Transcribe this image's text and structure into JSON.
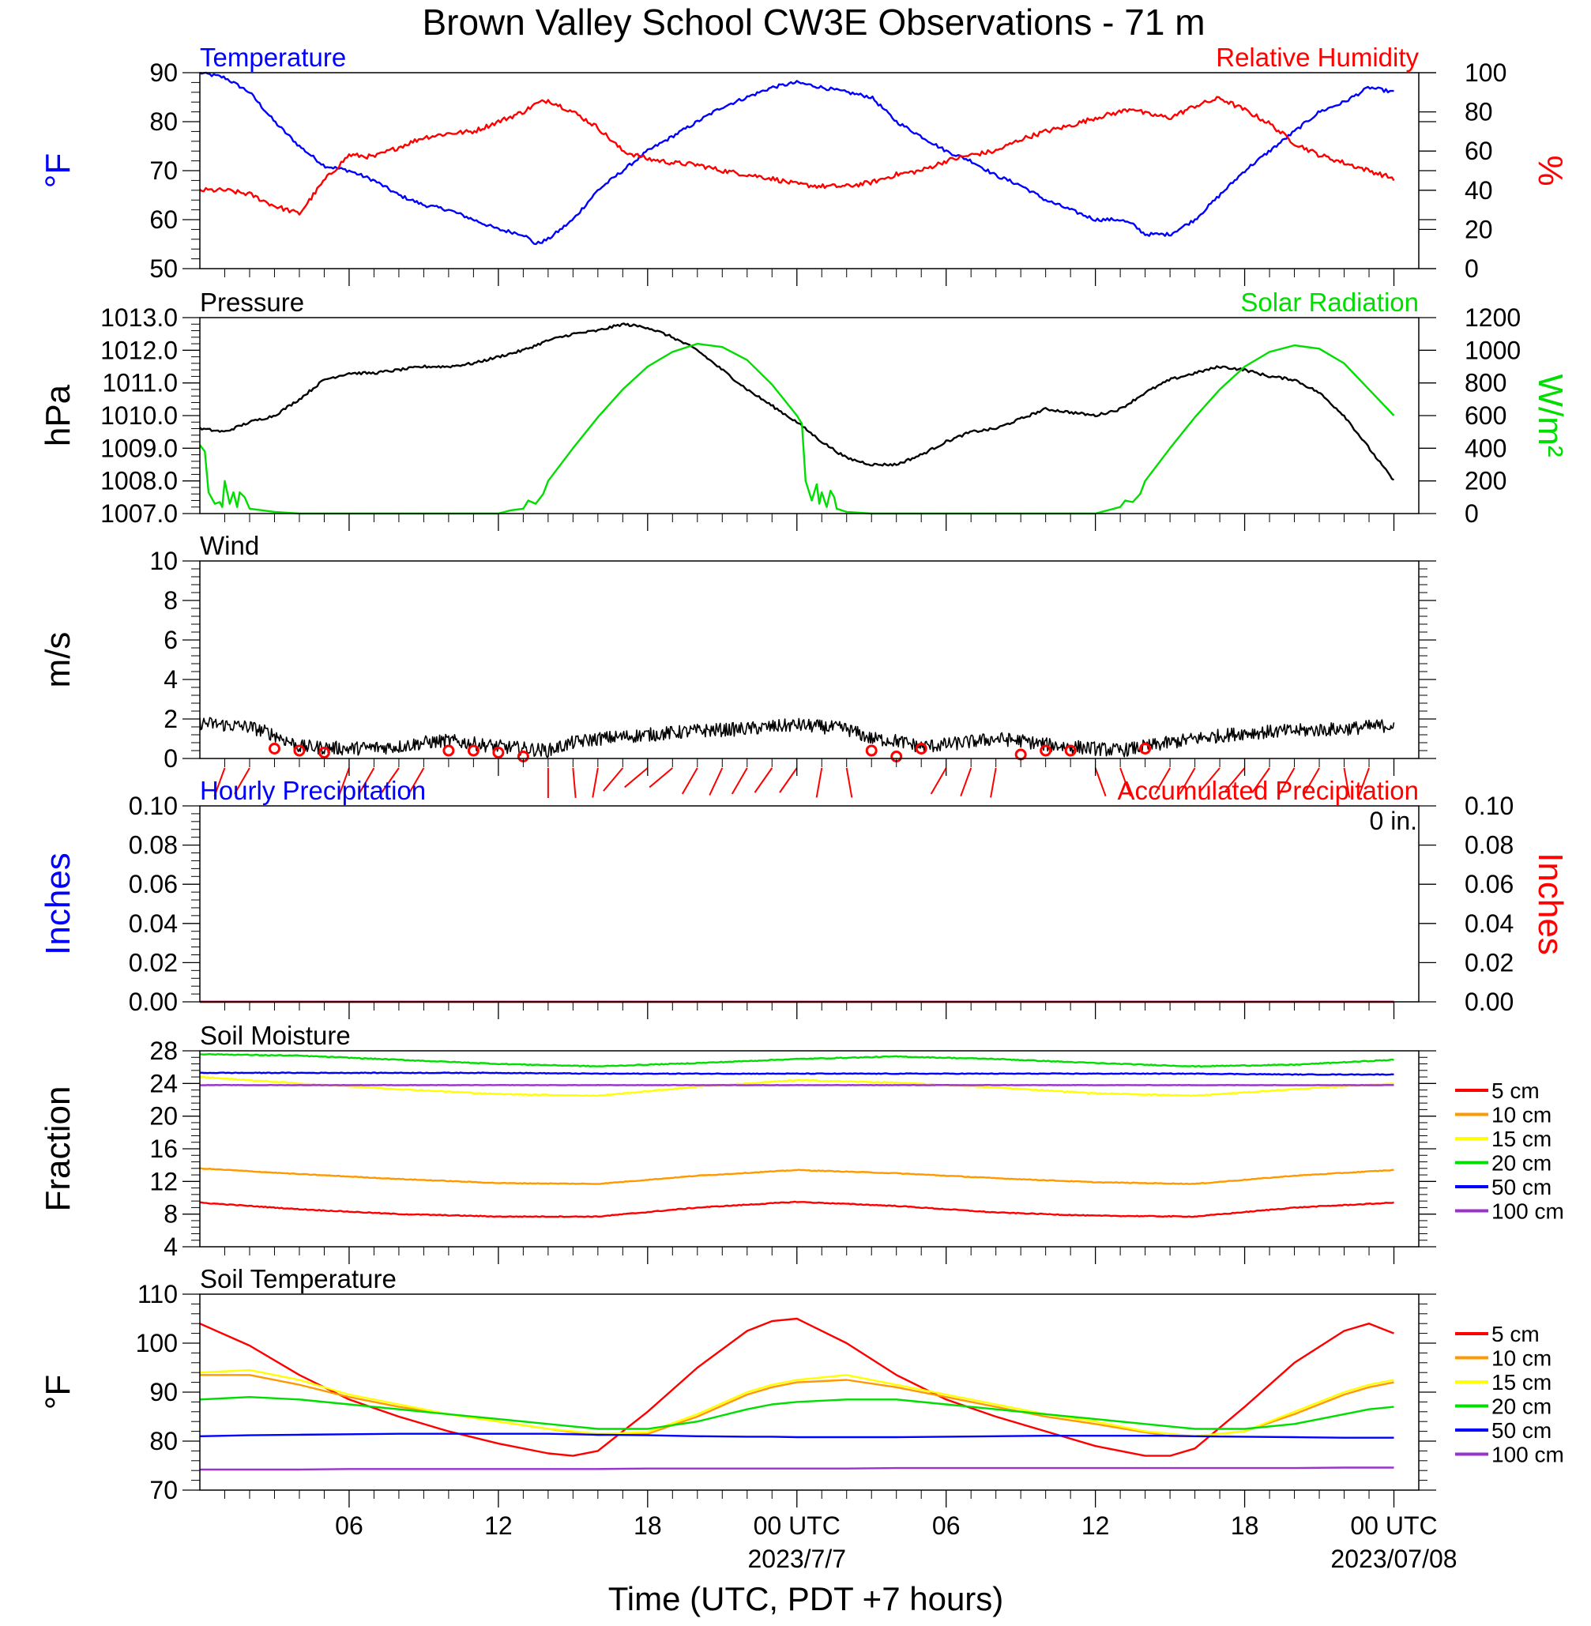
{
  "title": "Brown Valley School CW3E Observations - 71 m",
  "xlabel": "Time (UTC, PDT +7 hours)",
  "x_ticks": [
    "06",
    "12",
    "18",
    "00 UTC",
    "06",
    "12",
    "18",
    "00 UTC"
  ],
  "x_dates": [
    "2023/7/7",
    "2023/07/08"
  ],
  "colors": {
    "blue": "#0000ff",
    "red": "#ff0000",
    "green": "#00dd00",
    "black": "#000000",
    "orange": "#ff9900",
    "yellow": "#ffff00",
    "purple": "#9933cc"
  },
  "chart_data": [
    {
      "id": "temp_rh",
      "type": "line",
      "title_left": "Temperature",
      "title_right": "Relative Humidity",
      "ylabel_left": "°F",
      "ylabel_right": "%",
      "ylim_left": [
        50,
        90
      ],
      "ylim_right": [
        0,
        100
      ],
      "yticks_left": [
        "50",
        "60",
        "70",
        "80",
        "90"
      ],
      "yticks_right": [
        "0",
        "20",
        "40",
        "60",
        "80",
        "100"
      ],
      "x_hours": [
        0,
        1,
        2,
        3,
        4,
        5,
        6,
        7,
        8,
        9,
        10,
        11,
        12,
        13,
        13.5,
        14,
        15,
        16,
        17,
        18,
        19,
        20,
        21,
        22,
        23,
        24,
        25,
        26,
        27,
        28,
        29,
        30,
        31,
        32,
        33,
        34,
        35,
        36,
        37,
        37.5,
        38,
        39,
        40,
        41,
        42,
        43,
        44,
        45,
        46,
        47,
        48
      ],
      "series": [
        {
          "name": "Temperature",
          "axis": "left",
          "color": "#0000ff",
          "values": [
            90,
            89,
            86,
            80,
            75,
            71,
            70,
            68,
            65,
            63,
            62,
            60,
            58,
            57,
            55,
            56,
            60,
            66,
            70,
            74,
            77,
            80,
            83,
            85,
            87,
            88,
            87,
            86,
            85,
            80,
            77,
            74,
            72,
            69,
            67,
            64,
            62,
            60,
            60,
            59,
            57,
            57,
            60,
            65,
            70,
            74,
            78,
            82,
            84,
            87,
            86
          ]
        },
        {
          "name": "Relative Humidity",
          "axis": "right",
          "color": "#ff0000",
          "values": [
            40,
            40,
            38,
            32,
            28,
            45,
            58,
            57,
            62,
            67,
            69,
            70,
            75,
            80,
            84,
            86,
            80,
            72,
            60,
            56,
            54,
            53,
            50,
            48,
            46,
            43,
            42,
            42,
            44,
            48,
            50,
            55,
            58,
            60,
            66,
            70,
            73,
            77,
            80,
            82,
            79,
            77,
            83,
            87,
            81,
            74,
            64,
            58,
            54,
            50,
            46
          ]
        }
      ]
    },
    {
      "id": "pressure_solar",
      "type": "line",
      "title_left": "Pressure",
      "title_right": "Solar Radiation",
      "ylabel_left": "hPa",
      "ylabel_right": "W/m²",
      "ylim_left": [
        1007,
        1013
      ],
      "ylim_right": [
        0,
        1200
      ],
      "yticks_left": [
        "1007.0",
        "1008.0",
        "1009.0",
        "1010.0",
        "1011.0",
        "1012.0",
        "1013.0"
      ],
      "yticks_right": [
        "0",
        "200",
        "400",
        "600",
        "800",
        "1000",
        "1200"
      ],
      "series": [
        {
          "name": "Pressure",
          "axis": "left",
          "color": "#000000",
          "x_hours": [
            0,
            1,
            2,
            3,
            4,
            5,
            6,
            7,
            8,
            9,
            10,
            11,
            12,
            13,
            14,
            15,
            16,
            17,
            18,
            19,
            20,
            21,
            22,
            23,
            24,
            25,
            26,
            27,
            28,
            29,
            30,
            31,
            32,
            33,
            34,
            35,
            36,
            37,
            38,
            39,
            40,
            41,
            42,
            43,
            44,
            45,
            46,
            47,
            48
          ],
          "values": [
            1009.6,
            1009.5,
            1009.8,
            1010.0,
            1010.5,
            1011.1,
            1011.3,
            1011.3,
            1011.4,
            1011.5,
            1011.5,
            1011.6,
            1011.8,
            1012.0,
            1012.3,
            1012.5,
            1012.6,
            1012.8,
            1012.7,
            1012.4,
            1012.0,
            1011.4,
            1010.8,
            1010.3,
            1009.8,
            1009.2,
            1008.7,
            1008.5,
            1008.5,
            1008.8,
            1009.2,
            1009.5,
            1009.6,
            1009.9,
            1010.2,
            1010.1,
            1010.0,
            1010.2,
            1010.7,
            1011.1,
            1011.3,
            1011.5,
            1011.4,
            1011.2,
            1011.1,
            1010.7,
            1010.0,
            1009.0,
            1008.0
          ]
        },
        {
          "name": "Solar Radiation",
          "axis": "right",
          "color": "#00dd00",
          "x_hours": [
            0,
            0.2,
            0.35,
            0.6,
            0.8,
            0.9,
            1.0,
            1.2,
            1.35,
            1.5,
            1.6,
            1.8,
            2.0,
            3.0,
            4,
            6,
            8,
            10,
            12,
            12.5,
            13,
            13.2,
            13.5,
            13.8,
            14,
            15,
            16,
            17,
            18,
            19,
            20,
            21,
            22,
            23,
            24,
            24.2,
            24.35,
            24.6,
            24.8,
            24.9,
            25.0,
            25.2,
            25.35,
            25.5,
            25.6,
            25.8,
            26.0,
            27.0,
            28,
            30,
            32,
            34,
            36,
            36.5,
            37,
            37.2,
            37.5,
            37.8,
            38,
            39,
            40,
            41,
            42,
            43,
            44,
            45,
            46,
            47,
            48
          ],
          "values": [
            420,
            380,
            130,
            60,
            70,
            40,
            200,
            60,
            130,
            40,
            130,
            100,
            30,
            10,
            0,
            0,
            0,
            0,
            0,
            20,
            30,
            80,
            60,
            120,
            200,
            400,
            590,
            760,
            900,
            990,
            1040,
            1020,
            940,
            790,
            600,
            550,
            200,
            80,
            180,
            60,
            130,
            40,
            140,
            100,
            30,
            20,
            10,
            0,
            0,
            0,
            0,
            0,
            0,
            20,
            40,
            80,
            70,
            120,
            200,
            400,
            590,
            760,
            900,
            990,
            1030,
            1010,
            920,
            760,
            600
          ]
        }
      ]
    },
    {
      "id": "wind",
      "type": "line",
      "title_left": "Wind",
      "ylabel_left": "m/s",
      "ylim_left": [
        0,
        10
      ],
      "yticks_left": [
        "0",
        "2",
        "4",
        "6",
        "8",
        "10"
      ],
      "series": [
        {
          "name": "Wind",
          "axis": "left",
          "color": "#000000",
          "x_hours": [
            0,
            2,
            3,
            4,
            6,
            8,
            9,
            10,
            12,
            14,
            15,
            16,
            18,
            20,
            22,
            24,
            26,
            27,
            28,
            29,
            30,
            32,
            33,
            34,
            36,
            37,
            38,
            40,
            42,
            44,
            46,
            48
          ],
          "values": [
            1.8,
            1.6,
            1.2,
            0.6,
            0.5,
            0.6,
            0.8,
            0.9,
            0.6,
            0.4,
            0.8,
            1.0,
            1.2,
            1.4,
            1.5,
            1.7,
            1.5,
            1.0,
            0.9,
            0.6,
            0.7,
            1.0,
            0.9,
            0.7,
            0.5,
            0.4,
            0.6,
            1.0,
            1.3,
            1.4,
            1.5,
            1.7
          ]
        }
      ],
      "calm_hours": [
        3,
        4,
        5,
        10,
        11,
        12,
        13,
        27,
        28,
        29,
        33,
        34,
        35,
        38
      ],
      "calm_values": [
        0.5,
        0.4,
        0.3,
        0.4,
        0.4,
        0.3,
        0.1,
        0.4,
        0.1,
        0.5,
        0.2,
        0.4,
        0.4,
        0.5
      ],
      "barb_hours": [
        1,
        2,
        6,
        7,
        8,
        9,
        14,
        15,
        16,
        17,
        18,
        19,
        20,
        21,
        22,
        23,
        24,
        25,
        26,
        30,
        31,
        32,
        36,
        37,
        39,
        40,
        41,
        42,
        43,
        44,
        45,
        46,
        47
      ],
      "barb_dir_deg": [
        200,
        210,
        200,
        210,
        215,
        210,
        180,
        175,
        190,
        220,
        230,
        230,
        210,
        205,
        210,
        215,
        215,
        190,
        170,
        210,
        200,
        190,
        160,
        160,
        210,
        210,
        220,
        220,
        215,
        210,
        210,
        170,
        200
      ]
    },
    {
      "id": "precip",
      "type": "line",
      "title_left": "Hourly Precipitation",
      "title_right": "Accumulated Precipitation",
      "annotation": "0 in.",
      "ylabel_left": "Inches",
      "ylabel_right": "Inches",
      "ylim_left": [
        0,
        0.1
      ],
      "ylim_right": [
        0,
        0.1
      ],
      "yticks_left": [
        "0.00",
        "0.02",
        "0.04",
        "0.06",
        "0.08",
        "0.10"
      ],
      "yticks_right": [
        "0.00",
        "0.02",
        "0.04",
        "0.06",
        "0.08",
        "0.10"
      ],
      "series": [
        {
          "name": "Hourly Precipitation",
          "axis": "left",
          "color": "#0000ff",
          "x_hours": [
            0,
            48
          ],
          "values": [
            0,
            0
          ]
        },
        {
          "name": "Accumulated Precipitation",
          "axis": "right",
          "color": "#ff0000",
          "x_hours": [
            0,
            48
          ],
          "values": [
            0,
            0
          ]
        }
      ]
    },
    {
      "id": "soil_moisture",
      "type": "line",
      "title_left": "Soil Moisture",
      "ylabel_left": "Fraction",
      "ylim_left": [
        4,
        28
      ],
      "yticks_left": [
        "4",
        "8",
        "12",
        "16",
        "20",
        "24",
        "28"
      ],
      "x_hours": [
        0,
        4,
        8,
        12,
        16,
        20,
        24,
        28,
        32,
        36,
        40,
        44,
        48
      ],
      "series": [
        {
          "name": "5 cm",
          "color": "#ff0000",
          "values": [
            9.4,
            8.6,
            8.0,
            7.7,
            7.7,
            8.8,
            9.5,
            9.0,
            8.2,
            7.8,
            7.7,
            8.8,
            9.4
          ]
        },
        {
          "name": "10 cm",
          "color": "#ff9900",
          "values": [
            13.6,
            12.9,
            12.3,
            11.8,
            11.7,
            12.7,
            13.4,
            13.0,
            12.4,
            11.9,
            11.7,
            12.7,
            13.4
          ]
        },
        {
          "name": "15 cm",
          "color": "#ffff00",
          "values": [
            24.8,
            24.0,
            23.3,
            22.7,
            22.5,
            23.6,
            24.4,
            24.1,
            23.5,
            22.8,
            22.5,
            23.3,
            24.0
          ]
        },
        {
          "name": "20 cm",
          "color": "#00dd00",
          "values": [
            27.6,
            27.4,
            26.9,
            26.4,
            26.1,
            26.5,
            27.0,
            27.3,
            27.0,
            26.5,
            26.1,
            26.3,
            26.9
          ]
        },
        {
          "name": "50 cm",
          "color": "#0000ff",
          "values": [
            25.3,
            25.3,
            25.3,
            25.3,
            25.2,
            25.2,
            25.2,
            25.2,
            25.2,
            25.2,
            25.2,
            25.1,
            25.1
          ]
        },
        {
          "name": "100 cm",
          "color": "#9933cc",
          "values": [
            23.8,
            23.8,
            23.8,
            23.8,
            23.8,
            23.8,
            23.8,
            23.8,
            23.8,
            23.8,
            23.8,
            23.8,
            23.8
          ]
        }
      ]
    },
    {
      "id": "soil_temp",
      "type": "line",
      "title_left": "Soil Temperature",
      "ylabel_left": "°F",
      "ylim_left": [
        70,
        110
      ],
      "yticks_left": [
        "70",
        "80",
        "90",
        "100",
        "110"
      ],
      "x_hours": [
        0,
        2,
        4,
        6,
        8,
        10,
        12,
        14,
        15,
        16,
        18,
        20,
        22,
        23,
        24,
        26,
        28,
        30,
        32,
        34,
        36,
        38,
        39,
        40,
        42,
        44,
        46,
        47,
        48
      ],
      "series": [
        {
          "name": "5 cm",
          "color": "#ff0000",
          "values": [
            104.0,
            99.5,
            93.5,
            88.5,
            85.0,
            82.0,
            79.5,
            77.5,
            77.0,
            78.0,
            86.0,
            95.0,
            102.5,
            104.5,
            105.0,
            100.0,
            93.5,
            88.5,
            85.0,
            82.0,
            79.0,
            77.0,
            77.0,
            78.5,
            87.0,
            96.0,
            102.5,
            104.0,
            102.0
          ]
        },
        {
          "name": "10 cm",
          "color": "#ff9900",
          "values": [
            93.5,
            93.5,
            91.5,
            89.0,
            87.0,
            85.5,
            84.0,
            82.5,
            81.8,
            81.2,
            81.5,
            85.0,
            89.5,
            91.0,
            92.0,
            92.5,
            91.0,
            89.0,
            87.0,
            85.0,
            83.5,
            81.8,
            81.0,
            81.0,
            82.0,
            85.5,
            89.5,
            91.0,
            92.0
          ]
        },
        {
          "name": "15 cm",
          "color": "#ffff00",
          "values": [
            94.0,
            94.5,
            92.5,
            89.5,
            87.5,
            85.5,
            84.0,
            82.5,
            82.0,
            81.5,
            81.8,
            85.5,
            90.0,
            91.5,
            92.5,
            93.5,
            91.5,
            89.5,
            87.5,
            85.5,
            84.0,
            82.0,
            81.5,
            81.0,
            82.0,
            86.0,
            90.0,
            91.5,
            92.5
          ]
        },
        {
          "name": "20 cm",
          "color": "#00dd00",
          "values": [
            88.5,
            89.0,
            88.5,
            87.5,
            86.5,
            85.5,
            84.5,
            83.5,
            83.0,
            82.5,
            82.5,
            84.0,
            86.5,
            87.5,
            88.0,
            88.5,
            88.5,
            87.5,
            86.5,
            85.5,
            84.5,
            83.5,
            83.0,
            82.5,
            82.5,
            83.5,
            85.5,
            86.5,
            87.0
          ]
        },
        {
          "name": "50 cm",
          "color": "#0000ff",
          "values": [
            81.0,
            81.2,
            81.3,
            81.4,
            81.5,
            81.5,
            81.5,
            81.5,
            81.4,
            81.3,
            81.2,
            81.0,
            80.9,
            80.9,
            80.8,
            80.8,
            80.8,
            80.9,
            81.0,
            81.1,
            81.1,
            81.1,
            81.1,
            81.0,
            80.9,
            80.8,
            80.7,
            80.7,
            80.7
          ]
        },
        {
          "name": "100 cm",
          "color": "#9933cc",
          "values": [
            74.2,
            74.2,
            74.2,
            74.3,
            74.3,
            74.3,
            74.3,
            74.3,
            74.3,
            74.3,
            74.4,
            74.4,
            74.4,
            74.4,
            74.4,
            74.4,
            74.5,
            74.5,
            74.5,
            74.5,
            74.5,
            74.5,
            74.5,
            74.5,
            74.5,
            74.5,
            74.6,
            74.6,
            74.6
          ]
        }
      ]
    }
  ]
}
